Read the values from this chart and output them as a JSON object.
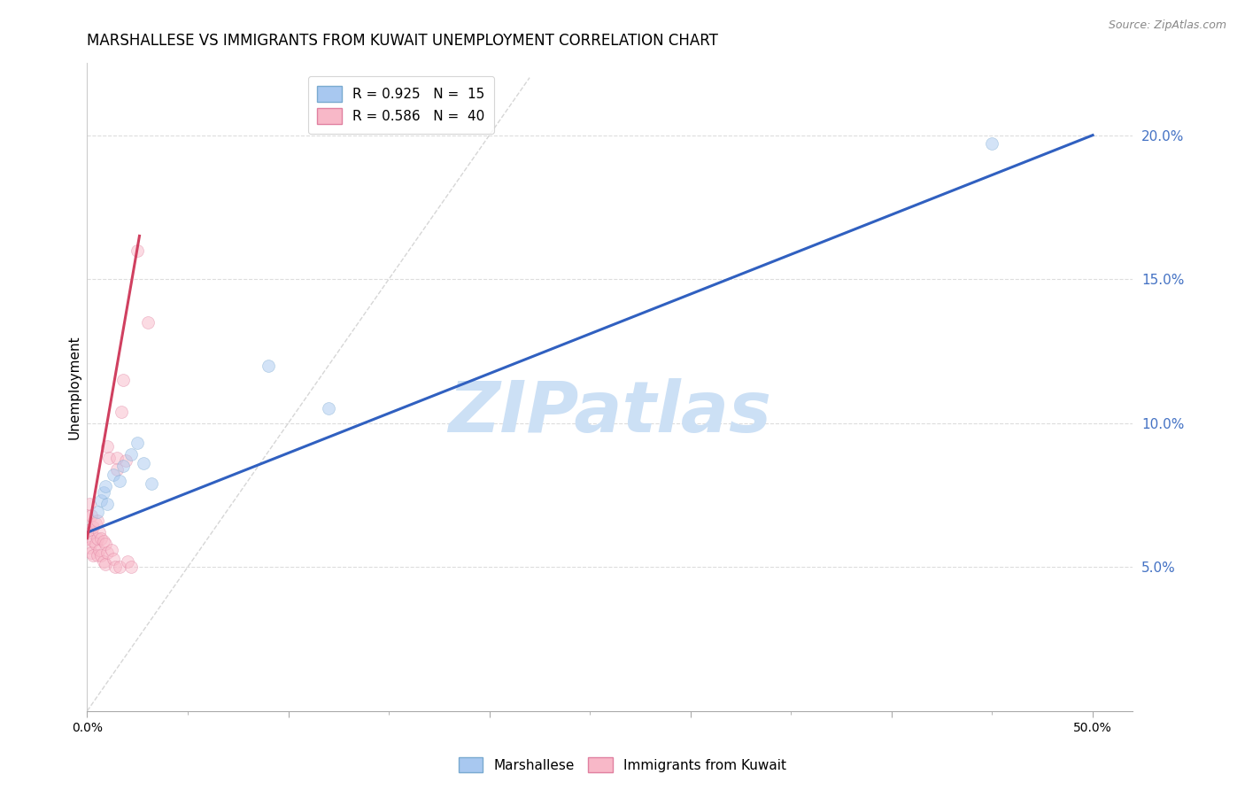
{
  "title": "MARSHALLESE VS IMMIGRANTS FROM KUWAIT UNEMPLOYMENT CORRELATION CHART",
  "source": "Source: ZipAtlas.com",
  "ylabel": "Unemployment",
  "y_tick_values_right": [
    0.05,
    0.1,
    0.15,
    0.2
  ],
  "xlim": [
    0.0,
    0.52
  ],
  "ylim": [
    0.0,
    0.225
  ],
  "watermark": "ZIPatlas",
  "watermark_color": "#cce0f5",
  "blue_scatter_x": [
    0.005,
    0.007,
    0.008,
    0.009,
    0.01,
    0.013,
    0.016,
    0.018,
    0.022,
    0.025,
    0.028,
    0.032,
    0.09,
    0.12,
    0.45
  ],
  "blue_scatter_y": [
    0.069,
    0.073,
    0.076,
    0.078,
    0.072,
    0.082,
    0.08,
    0.085,
    0.089,
    0.093,
    0.086,
    0.079,
    0.12,
    0.105,
    0.197
  ],
  "pink_scatter_x": [
    0.0,
    0.0,
    0.001,
    0.001,
    0.001,
    0.002,
    0.002,
    0.002,
    0.003,
    0.003,
    0.003,
    0.004,
    0.004,
    0.005,
    0.005,
    0.005,
    0.006,
    0.006,
    0.007,
    0.007,
    0.008,
    0.008,
    0.009,
    0.009,
    0.01,
    0.01,
    0.011,
    0.012,
    0.013,
    0.014,
    0.015,
    0.015,
    0.016,
    0.017,
    0.018,
    0.019,
    0.02,
    0.022,
    0.025,
    0.03
  ],
  "pink_scatter_y": [
    0.068,
    0.06,
    0.072,
    0.063,
    0.057,
    0.068,
    0.062,
    0.055,
    0.064,
    0.059,
    0.054,
    0.065,
    0.058,
    0.066,
    0.06,
    0.054,
    0.062,
    0.056,
    0.06,
    0.054,
    0.059,
    0.052,
    0.058,
    0.051,
    0.092,
    0.055,
    0.088,
    0.056,
    0.053,
    0.05,
    0.088,
    0.084,
    0.05,
    0.104,
    0.115,
    0.087,
    0.052,
    0.05,
    0.16,
    0.135
  ],
  "blue_line_x": [
    0.0,
    0.5
  ],
  "blue_line_y": [
    0.062,
    0.2
  ],
  "pink_line_x": [
    0.0,
    0.026
  ],
  "pink_line_y": [
    0.06,
    0.165
  ],
  "diag_line_x": [
    0.0,
    0.22
  ],
  "diag_line_y": [
    0.0,
    0.22
  ],
  "scatter_dot_size": 100,
  "scatter_alpha": 0.5,
  "blue_dot_color": "#a8c8f0",
  "blue_dot_edge": "#7aaad0",
  "pink_dot_color": "#f8b8c8",
  "pink_dot_edge": "#e080a0",
  "blue_line_color": "#3060c0",
  "pink_line_color": "#d04060",
  "diag_line_color": "#cccccc",
  "grid_color": "#dddddd",
  "right_label_color": "#4472C4",
  "title_fontsize": 12,
  "axis_label_fontsize": 11,
  "tick_fontsize": 10
}
